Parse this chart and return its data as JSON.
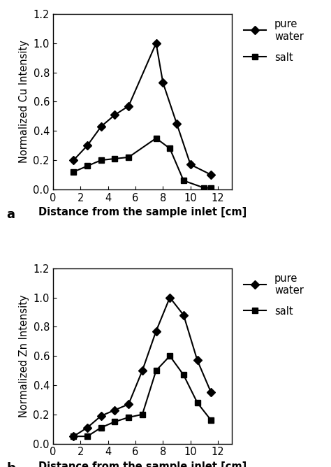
{
  "panel_a": {
    "ylabel": "Normalized Cu Intensity",
    "xlabel": "Distance from the sample inlet [cm]",
    "label": "a",
    "pure_water": {
      "x": [
        1.5,
        2.5,
        3.5,
        4.5,
        5.5,
        7.5,
        8.0,
        9.0,
        10.0,
        11.5
      ],
      "y": [
        0.2,
        0.3,
        0.43,
        0.51,
        0.57,
        1.0,
        0.73,
        0.45,
        0.17,
        0.1
      ]
    },
    "salt": {
      "x": [
        1.5,
        2.5,
        3.5,
        4.5,
        5.5,
        7.5,
        8.5,
        9.5,
        11.0,
        11.5
      ],
      "y": [
        0.12,
        0.16,
        0.2,
        0.21,
        0.22,
        0.35,
        0.28,
        0.06,
        0.01,
        0.01
      ]
    },
    "ylim": [
      0,
      1.2
    ],
    "xlim": [
      0,
      13
    ],
    "yticks": [
      0,
      0.2,
      0.4,
      0.6,
      0.8,
      1.0,
      1.2
    ],
    "xticks": [
      0,
      2,
      4,
      6,
      8,
      10,
      12
    ]
  },
  "panel_b": {
    "ylabel": "Normalized Zn Intensity",
    "xlabel": "Distance from the sample inlet [cm]",
    "label": "b",
    "pure_water": {
      "x": [
        1.5,
        2.5,
        3.5,
        4.5,
        5.5,
        6.5,
        7.5,
        8.5,
        9.5,
        10.5,
        11.5
      ],
      "y": [
        0.05,
        0.11,
        0.19,
        0.23,
        0.27,
        0.5,
        0.77,
        1.0,
        0.88,
        0.57,
        0.35
      ]
    },
    "salt": {
      "x": [
        1.5,
        2.5,
        3.5,
        4.5,
        5.5,
        6.5,
        7.5,
        8.5,
        9.5,
        10.5,
        11.5
      ],
      "y": [
        0.05,
        0.05,
        0.11,
        0.15,
        0.18,
        0.2,
        0.5,
        0.6,
        0.47,
        0.28,
        0.16
      ]
    },
    "ylim": [
      0,
      1.2
    ],
    "xlim": [
      0,
      13
    ],
    "yticks": [
      0,
      0.2,
      0.4,
      0.6,
      0.8,
      1.0,
      1.2
    ],
    "xticks": [
      0,
      2,
      4,
      6,
      8,
      10,
      12
    ]
  },
  "line_color": "#000000",
  "marker_diamond": "D",
  "marker_square": "s",
  "markersize": 6,
  "linewidth": 1.5,
  "legend_pure_water": "pure\nwater",
  "legend_salt": "salt",
  "background_color": "#ffffff"
}
